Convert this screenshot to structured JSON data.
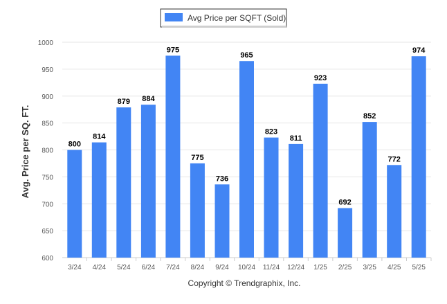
{
  "chart_data": {
    "type": "bar",
    "title": "",
    "xlabel": "",
    "ylabel": "Avg. Price per SQ. FT.",
    "categories": [
      "3/24",
      "4/24",
      "5/24",
      "6/24",
      "7/24",
      "8/24",
      "9/24",
      "10/24",
      "11/24",
      "12/24",
      "1/25",
      "2/25",
      "3/25",
      "4/25",
      "5/25"
    ],
    "series": [
      {
        "name": "Avg Price per SQFT (Sold)",
        "values": [
          800,
          814,
          879,
          884,
          975,
          775,
          736,
          965,
          823,
          811,
          923,
          692,
          852,
          772,
          974
        ],
        "color": "#4285f4"
      }
    ],
    "ylim": [
      600,
      1000
    ],
    "yticks": [
      600,
      650,
      700,
      750,
      800,
      850,
      900,
      950,
      1000
    ],
    "grid": true,
    "legend": "top-center",
    "data_labels": true
  },
  "footer": {
    "copyright": "Copyright © Trendgraphix, Inc."
  }
}
